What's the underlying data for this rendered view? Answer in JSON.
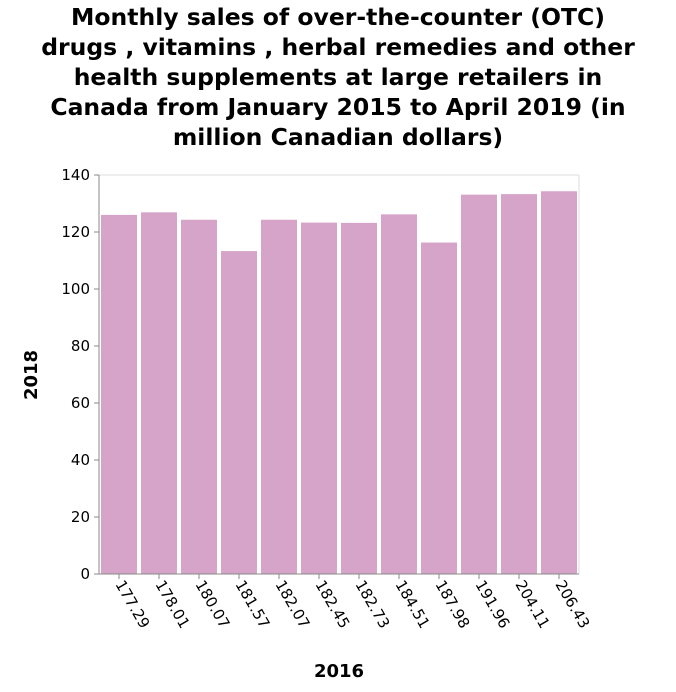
{
  "chart_data": {
    "type": "bar",
    "title": "Monthly sales of over-the-counter (OTC)\ndrugs , vitamins , herbal remedies and other\nhealth supplements at large retailers in\nCanada from January 2015 to April 2019 (in\nmillion Canadian dollars)",
    "xlabel": "2016",
    "ylabel": "2018",
    "categories": [
      "177.29",
      "178.01",
      "180.07",
      "181.57",
      "182.07",
      "182.45",
      "182.73",
      "184.51",
      "187.98",
      "191.96",
      "204.11",
      "206.43"
    ],
    "values": [
      126,
      126.9,
      124.3,
      113.3,
      124.3,
      123.3,
      123.2,
      126.2,
      116.3,
      133.1,
      133.3,
      134.3
    ],
    "ylim": [
      0,
      140
    ],
    "yticks": [
      0,
      20,
      40,
      60,
      80,
      100,
      120,
      140
    ],
    "grid": false,
    "bar_color": "#d6a3c9"
  }
}
